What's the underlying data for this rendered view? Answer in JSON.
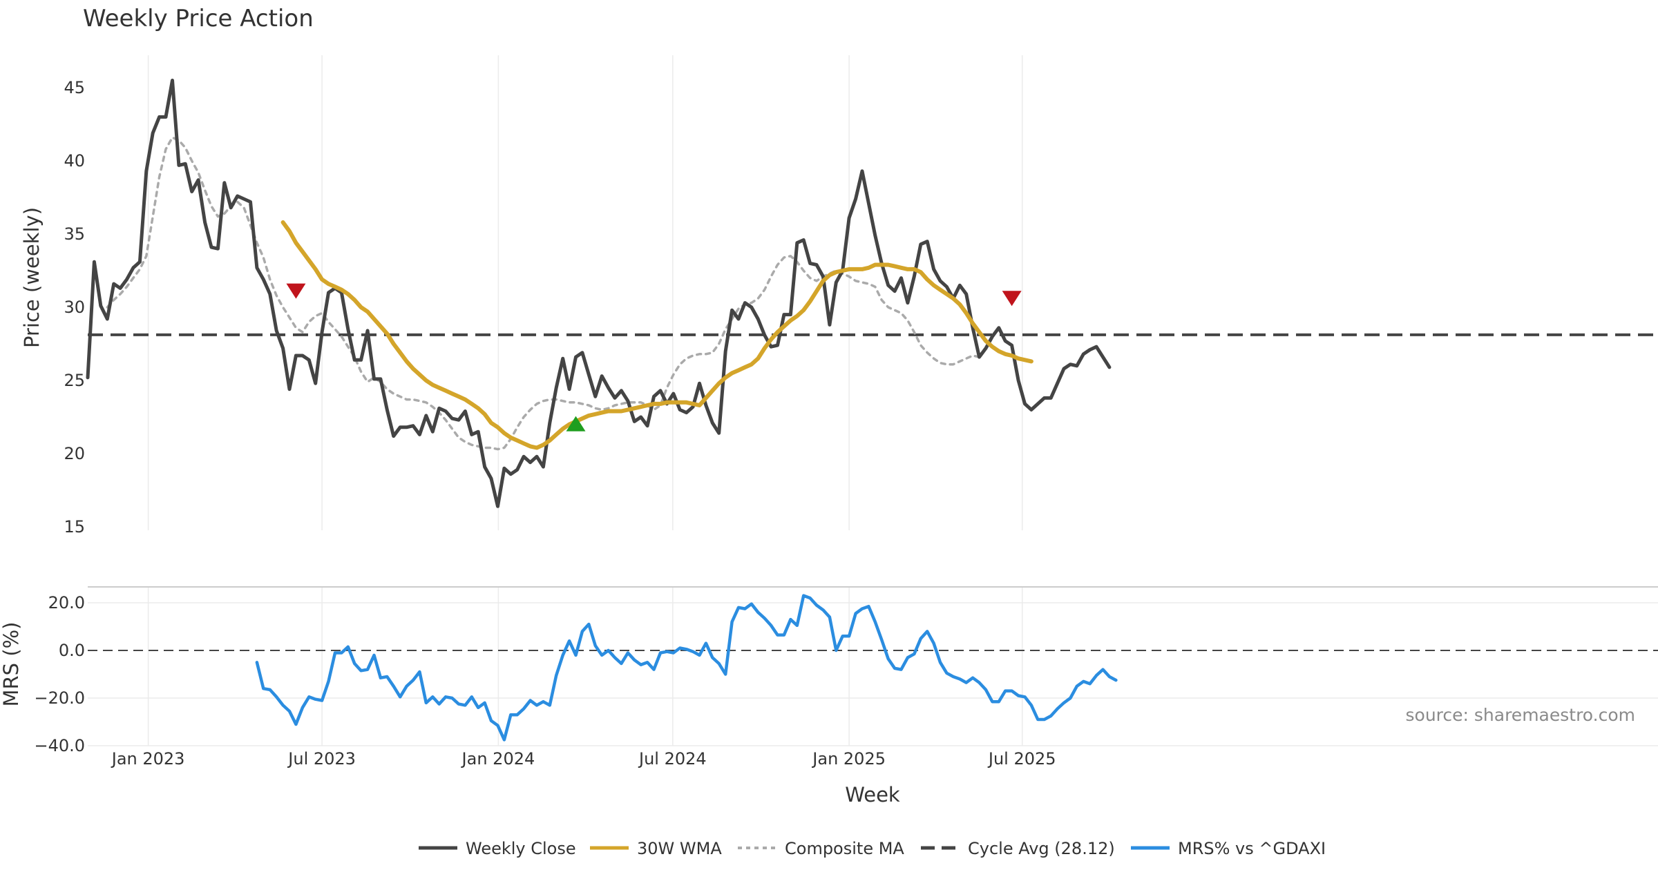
{
  "chart_data": [
    {
      "type": "line",
      "title": "Weekly Price Action",
      "ylabel": "Price (weekly)",
      "ylim": [
        15,
        47
      ],
      "yticks": [
        15,
        20,
        25,
        30,
        35,
        40,
        45
      ],
      "grid": true,
      "start_week": "2022-10-24",
      "series": [
        {
          "name": "Weekly Close",
          "color": "#444444",
          "start_index": 0,
          "values": [
            25.2,
            33.1,
            30.1,
            29.2,
            31.6,
            31.3,
            31.9,
            32.7,
            33.1,
            39.3,
            41.9,
            43.0,
            43.0,
            45.5,
            39.7,
            39.8,
            37.9,
            38.7,
            35.8,
            34.1,
            34.0,
            38.5,
            36.8,
            37.6,
            37.4,
            37.2,
            32.7,
            31.9,
            30.9,
            28.4,
            27.2,
            24.4,
            26.7,
            26.7,
            26.4,
            24.8,
            28.3,
            31.0,
            31.3,
            31.0,
            28.5,
            26.4,
            26.4,
            28.4,
            25.1,
            25.1,
            23.0,
            21.2,
            21.8,
            21.8,
            21.9,
            21.3,
            22.6,
            21.5,
            23.1,
            22.9,
            22.4,
            22.3,
            22.9,
            21.3,
            21.5,
            19.1,
            18.3,
            16.4,
            19.0,
            18.6,
            18.9,
            19.8,
            19.4,
            19.8,
            19.1,
            22.1,
            24.5,
            26.5,
            24.4,
            26.6,
            26.9,
            25.4,
            23.9,
            25.3,
            24.5,
            23.8,
            24.3,
            23.6,
            22.2,
            22.5,
            21.9,
            23.9,
            24.3,
            23.4,
            24.1,
            23.0,
            22.8,
            23.2,
            24.8,
            23.3,
            22.1,
            21.4,
            27.0,
            29.8,
            29.2,
            30.3,
            30.0,
            29.2,
            28.1,
            27.3,
            27.4,
            29.5,
            29.5,
            34.4,
            34.6,
            33.0,
            32.9,
            32.1,
            28.8,
            31.7,
            32.5,
            36.1,
            37.4,
            39.3,
            37.1,
            34.9,
            33.0,
            31.5,
            31.1,
            32.0,
            30.3,
            32.1,
            34.3,
            34.5,
            32.6,
            31.8,
            31.4,
            30.6,
            31.5,
            30.9,
            28.6,
            26.6,
            27.2,
            28.0,
            28.6,
            27.7,
            27.4,
            25.0,
            23.4,
            23.0,
            23.4,
            23.8,
            23.8,
            24.8,
            25.8,
            26.1,
            26.0,
            26.8,
            27.1,
            27.3,
            26.6,
            25.9
          ]
        },
        {
          "name": "30W WMA",
          "color": "#d4a52a",
          "start_index": 30,
          "values": [
            35.8,
            35.2,
            34.4,
            33.8,
            33.2,
            32.6,
            31.9,
            31.6,
            31.4,
            31.2,
            30.9,
            30.5,
            30.0,
            29.7,
            29.2,
            28.7,
            28.2,
            27.5,
            26.9,
            26.3,
            25.8,
            25.4,
            25.0,
            24.7,
            24.5,
            24.3,
            24.1,
            23.9,
            23.7,
            23.4,
            23.1,
            22.7,
            22.1,
            21.8,
            21.4,
            21.1,
            20.9,
            20.7,
            20.5,
            20.4,
            20.6,
            20.9,
            21.3,
            21.7,
            22.0,
            22.2,
            22.4,
            22.6,
            22.7,
            22.8,
            22.9,
            22.9,
            22.9,
            23.0,
            23.1,
            23.2,
            23.3,
            23.4,
            23.4,
            23.5,
            23.5,
            23.5,
            23.5,
            23.4,
            23.3,
            23.8,
            24.3,
            24.8,
            25.2,
            25.5,
            25.7,
            25.9,
            26.1,
            26.5,
            27.2,
            27.8,
            28.3,
            28.7,
            29.1,
            29.4,
            29.8,
            30.4,
            31.1,
            31.8,
            32.2,
            32.4,
            32.5,
            32.6,
            32.6,
            32.6,
            32.7,
            32.9,
            32.9,
            32.9,
            32.8,
            32.7,
            32.6,
            32.6,
            32.4,
            31.9,
            31.5,
            31.2,
            30.9,
            30.6,
            30.2,
            29.6,
            28.9,
            28.3,
            27.7,
            27.3,
            27.0,
            26.8,
            26.7,
            26.5,
            26.4,
            26.3
          ]
        },
        {
          "name": "Composite MA",
          "color": "#aaaaaa",
          "start_index": 3,
          "values": [
            30.0,
            30.5,
            30.9,
            31.4,
            32.0,
            32.6,
            33.5,
            36.2,
            38.9,
            40.8,
            41.6,
            41.4,
            40.9,
            40.0,
            39.2,
            38.0,
            36.9,
            36.2,
            36.4,
            36.9,
            37.2,
            36.8,
            35.6,
            34.4,
            33.4,
            31.9,
            30.8,
            30.0,
            29.3,
            28.6,
            28.3,
            29.0,
            29.4,
            29.6,
            29.0,
            28.5,
            28.0,
            27.3,
            26.6,
            25.6,
            24.9,
            25.2,
            24.9,
            24.4,
            24.1,
            23.9,
            23.7,
            23.7,
            23.6,
            23.5,
            23.2,
            22.8,
            22.3,
            21.7,
            21.1,
            20.8,
            20.6,
            20.5,
            20.4,
            20.4,
            20.3,
            20.4,
            21.0,
            21.8,
            22.5,
            23.0,
            23.4,
            23.6,
            23.7,
            23.7,
            23.6,
            23.5,
            23.5,
            23.4,
            23.3,
            23.1,
            23.0,
            23.1,
            23.3,
            23.4,
            23.5,
            23.5,
            23.5,
            23.3,
            23.0,
            23.3,
            24.5,
            25.4,
            26.1,
            26.5,
            26.7,
            26.8,
            26.8,
            26.9,
            27.5,
            28.5,
            29.2,
            29.9,
            30.2,
            30.3,
            30.6,
            31.2,
            32.1,
            32.9,
            33.4,
            33.5,
            33.1,
            32.5,
            32.0,
            31.8,
            32.1,
            32.3,
            32.5,
            32.3,
            32.1,
            31.8,
            31.7,
            31.6,
            31.4,
            30.5,
            30.0,
            29.8,
            29.6,
            29.1,
            28.3,
            27.4,
            26.9,
            26.5,
            26.2,
            26.1,
            26.1,
            26.3,
            26.5,
            26.7,
            26.6
          ]
        }
      ],
      "cycle_avg": {
        "name": "Cycle Avg (28.12)",
        "value": 28.12,
        "color": "#444444"
      },
      "markers": [
        {
          "type": "sell",
          "index": 32,
          "value": 31.1,
          "color": "#c0141c"
        },
        {
          "type": "buy",
          "index": 75,
          "value": 22.0,
          "color": "#1f9e1f"
        },
        {
          "type": "sell",
          "index": 142,
          "value": 30.6,
          "color": "#c0141c"
        }
      ]
    },
    {
      "type": "line",
      "ylabel": "MRS (%)",
      "xlabel": "Week",
      "ylim": [
        -40,
        24
      ],
      "yticks": [
        "20.0",
        "0.0",
        "−20.0",
        "−40.0"
      ],
      "ytick_values": [
        20,
        0,
        -20,
        -40
      ],
      "x_tick_labels": [
        "Jan 2023",
        "Jul 2023",
        "Jan 2024",
        "Jul 2024",
        "Jan 2025",
        "Jul 2025"
      ],
      "x_tick_index": [
        9.3,
        36.0,
        63.1,
        89.9,
        117.0,
        143.6
      ],
      "zero_line": 0,
      "series": [
        {
          "name": "MRS% vs ^GDAXI",
          "color": "#2b8de0",
          "start_index": 26,
          "values": [
            -5,
            -16,
            -16.5,
            -19.5,
            -23,
            -25.5,
            -31,
            -24,
            -19.5,
            -20.5,
            -21,
            -13,
            -1,
            -1,
            1.5,
            -5.5,
            -8.5,
            -8,
            -2,
            -11.5,
            -11,
            -15,
            -19.5,
            -15,
            -12.5,
            -9,
            -22,
            -19.5,
            -22.5,
            -19.5,
            -20,
            -22.5,
            -23,
            -19.5,
            -24,
            -22,
            -29.5,
            -31.5,
            -37.5,
            -27,
            -27,
            -24.5,
            -21,
            -23,
            -21.5,
            -23,
            -10.5,
            -2,
            4,
            -2,
            8,
            11,
            2,
            -2,
            0,
            -3,
            -5.5,
            -1,
            -4,
            -6,
            -5,
            -8,
            -1,
            -0.5,
            -1,
            1,
            0.5,
            -0.5,
            -2,
            3,
            -3,
            -5.5,
            -10,
            12,
            18,
            17.5,
            19.5,
            16,
            13.5,
            10.5,
            6.5,
            6.5,
            13,
            10.5,
            23,
            22,
            19,
            17,
            14,
            0,
            6,
            6,
            15.5,
            17.5,
            18.5,
            12,
            4.5,
            -3.5,
            -7.5,
            -8,
            -3,
            -1.5,
            5,
            8,
            3,
            -5,
            -9.5,
            -11,
            -12,
            -13.5,
            -11.5,
            -13.5,
            -16.5,
            -21.5,
            -21.5,
            -17,
            -17,
            -19,
            -19.5,
            -23,
            -29,
            -29,
            -27.5,
            -24.5,
            -22,
            -20,
            -15,
            -13,
            -14,
            -10.5,
            -8,
            -11,
            -12.5
          ]
        }
      ]
    }
  ],
  "source": "source: sharemaestro.com",
  "legend": [
    {
      "label": "Weekly Close",
      "style": "solid",
      "color": "#444444"
    },
    {
      "label": "30W WMA",
      "style": "solid",
      "color": "#d4a52a"
    },
    {
      "label": "Composite MA",
      "style": "dotted",
      "color": "#aaaaaa"
    },
    {
      "label": "Cycle Avg (28.12)",
      "style": "dashed",
      "color": "#444444"
    },
    {
      "label": "MRS% vs ^GDAXI",
      "style": "solid",
      "color": "#2b8de0"
    }
  ]
}
